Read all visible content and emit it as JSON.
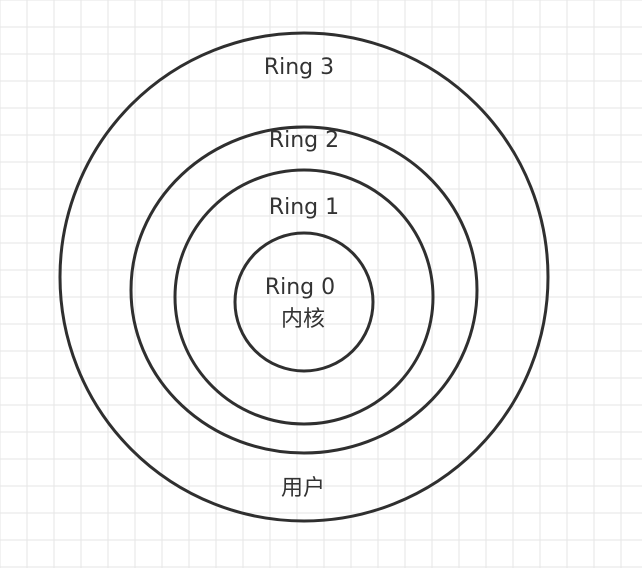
{
  "diagram": {
    "title": "",
    "rings": [
      {
        "name": "Ring 3",
        "label": "Ring 3"
      },
      {
        "name": "Ring 2",
        "label": "Ring 2"
      },
      {
        "name": "Ring 1",
        "label": "Ring 1"
      },
      {
        "name": "Ring 0",
        "label": "Ring 0",
        "sublabel": "内核"
      }
    ],
    "outer_label": "用户"
  },
  "colors": {
    "background": "#ffffff",
    "grid": "#e6e6e6",
    "stroke": "#2f2f2f",
    "text": "#333333"
  }
}
